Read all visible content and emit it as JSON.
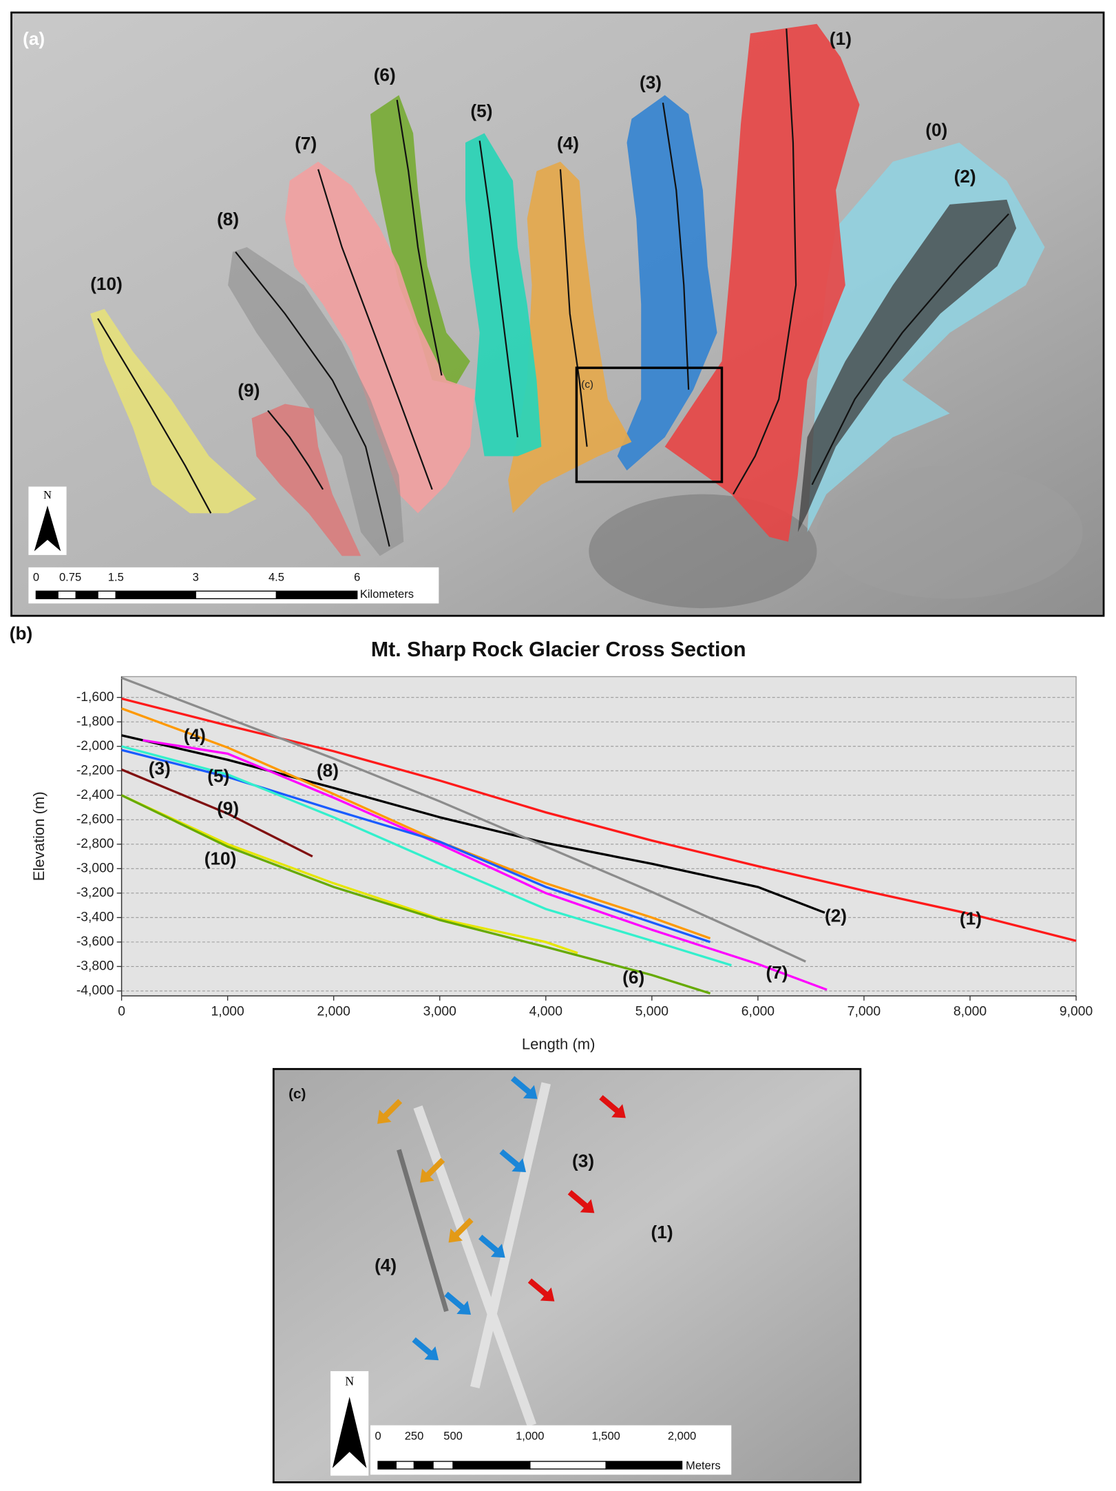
{
  "panel_a": {
    "label": "(a)",
    "glaciers": [
      "(0)",
      "(1)",
      "(2)",
      "(3)",
      "(4)",
      "(5)",
      "(6)",
      "(7)",
      "(8)",
      "(9)",
      "(10)"
    ],
    "inset_label": "(c)",
    "north": "N",
    "scale_labels": [
      "0",
      "0.75",
      "1.5",
      "3",
      "4.5",
      "6"
    ],
    "scale_unit": "Kilometers"
  },
  "chart_data": {
    "type": "line",
    "panel_label": "(b)",
    "title": "Mt. Sharp Rock Glacier Cross Section",
    "x_label": "Length (m)",
    "y_label": "Elevation (m)",
    "xlim": [
      0,
      9000
    ],
    "ylim": [
      -4040,
      -1430
    ],
    "xticks": [
      0,
      {
        "value": 1000,
        "label": "1,000"
      },
      {
        "value": 2000,
        "label": "2,000"
      },
      {
        "value": 3000,
        "label": "3,000"
      },
      {
        "value": 4000,
        "label": "4,000"
      },
      {
        "value": 5000,
        "label": "5,000"
      },
      {
        "value": 6000,
        "label": "6,000"
      },
      {
        "value": 7000,
        "label": "7,000"
      },
      {
        "value": 8000,
        "label": "8,000"
      },
      {
        "value": 9000,
        "label": "9,000"
      }
    ],
    "yticks": [
      {
        "value": -1600,
        "label": "-1,600"
      },
      {
        "value": -1800,
        "label": "-1,800"
      },
      {
        "value": -2000,
        "label": "-2,000"
      },
      {
        "value": -2200,
        "label": "-2,200"
      },
      {
        "value": -2400,
        "label": "-2,400"
      },
      {
        "value": -2600,
        "label": "-2,600"
      },
      {
        "value": -2800,
        "label": "-2,800"
      },
      {
        "value": -3000,
        "label": "-3,000"
      },
      {
        "value": -3200,
        "label": "-3,200"
      },
      {
        "value": -3400,
        "label": "-3,400"
      },
      {
        "value": -3600,
        "label": "-3,600"
      },
      {
        "value": -3800,
        "label": "-3,800"
      },
      {
        "value": -4000,
        "label": "-4,000"
      }
    ],
    "grid": true,
    "series": [
      {
        "name": "(1)",
        "color": "#ff1a1a",
        "x": [
          0,
          1000,
          2000,
          3000,
          4000,
          5000,
          6000,
          7000,
          8000,
          9000
        ],
        "values": [
          -1610,
          -1830,
          -2040,
          -2280,
          -2540,
          -2770,
          -2980,
          -3180,
          -3370,
          -3590
        ]
      },
      {
        "name": "(2)",
        "color": "#000000",
        "x": [
          0,
          1000,
          2000,
          3000,
          4000,
          5000,
          6000,
          6630
        ],
        "values": [
          -1910,
          -2110,
          -2340,
          -2580,
          -2790,
          -2960,
          -3150,
          -3360
        ]
      },
      {
        "name": "(8)",
        "color": "#8c8c8c",
        "x": [
          0,
          1000,
          2000,
          3000,
          4000,
          5000,
          6000,
          6450
        ],
        "values": [
          -1440,
          -1770,
          -2100,
          -2450,
          -2820,
          -3190,
          -3580,
          -3760
        ]
      },
      {
        "name": "(4)",
        "color": "#ff9900",
        "x": [
          0,
          1000,
          2000,
          3000,
          4000,
          5000,
          5550
        ],
        "values": [
          -1690,
          -2010,
          -2390,
          -2780,
          -3120,
          -3400,
          -3570
        ]
      },
      {
        "name": "(7)",
        "color": "#ff00ff",
        "x": [
          200,
          1000,
          2000,
          3000,
          4000,
          5000,
          6000,
          6650
        ],
        "values": [
          -1950,
          -2060,
          -2420,
          -2800,
          -3200,
          -3500,
          -3780,
          -3990
        ]
      },
      {
        "name": "(3)",
        "color": "#1a5cff",
        "x": [
          0,
          1000,
          2000,
          3000,
          4000,
          5000,
          5550
        ],
        "values": [
          -2030,
          -2250,
          -2520,
          -2780,
          -3150,
          -3440,
          -3600
        ]
      },
      {
        "name": "(5)",
        "color": "#33f0cc",
        "x": [
          0,
          1000,
          2000,
          3000,
          4000,
          5000,
          5750
        ],
        "values": [
          -2000,
          -2230,
          -2580,
          -2960,
          -3330,
          -3590,
          -3790
        ]
      },
      {
        "name": "(9)",
        "color": "#801010",
        "x": [
          0,
          1000,
          1800
        ],
        "values": [
          -2190,
          -2550,
          -2900
        ]
      },
      {
        "name": "(10)",
        "color": "#e6e600",
        "x": [
          0,
          1000,
          2000,
          3000,
          4000,
          4300
        ],
        "values": [
          -2400,
          -2800,
          -3120,
          -3410,
          -3600,
          -3690
        ]
      },
      {
        "name": "(6)",
        "color": "#66aa00",
        "x": [
          0,
          1000,
          2000,
          3000,
          4000,
          5000,
          5550
        ],
        "values": [
          -2400,
          -2820,
          -3150,
          -3420,
          -3640,
          -3870,
          -4020
        ]
      }
    ]
  },
  "panel_c": {
    "label": "(c)",
    "features": [
      "(3)",
      "(1)",
      "(4)"
    ],
    "north": "N",
    "scale_labels": [
      "0",
      "250",
      "500",
      "1,000",
      "1,500",
      "2,000"
    ],
    "scale_unit": "Meters"
  }
}
